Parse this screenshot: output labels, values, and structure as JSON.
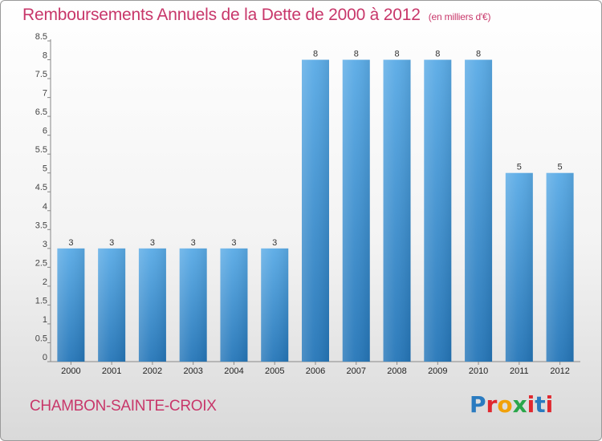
{
  "header": {
    "title": "Remboursements Annuels de la Dette de 2000 à 2012",
    "subtitle": "(en milliers d'€)"
  },
  "footer": {
    "commune": "CHAMBON-SAINTE-CROIX",
    "logo_letters": [
      "P",
      "r",
      "o",
      "x",
      "i",
      "t",
      "i"
    ]
  },
  "colors": {
    "title": "#c8376a",
    "bar_top": "#5aabe6",
    "bar_bottom": "#2576b8"
  },
  "chart_data": {
    "type": "bar",
    "categories": [
      "2000",
      "2001",
      "2002",
      "2003",
      "2004",
      "2005",
      "2006",
      "2007",
      "2008",
      "2009",
      "2010",
      "2011",
      "2012"
    ],
    "values": [
      3,
      3,
      3,
      3,
      3,
      3,
      8,
      8,
      8,
      8,
      8,
      5,
      5
    ],
    "data_labels": [
      "3",
      "3",
      "3",
      "3",
      "3",
      "3",
      "8",
      "8",
      "8",
      "8",
      "8",
      "5",
      "5"
    ],
    "ylim": [
      0,
      8.5
    ],
    "yticks": [
      0,
      0.5,
      1,
      1.5,
      2,
      2.5,
      3,
      3.5,
      4,
      4.5,
      5,
      5.5,
      6,
      6.5,
      7,
      7.5,
      8,
      8.5
    ],
    "ytick_labels": [
      "0",
      "0.5",
      "1",
      "1.5",
      "2",
      "2.5",
      "3",
      "3.5",
      "4",
      "4.5",
      "5",
      "5.5",
      "6",
      "6.5",
      "7",
      "7.5",
      "8",
      "8.5"
    ],
    "xlabel": "",
    "ylabel": "",
    "grid": false,
    "legend": "none"
  }
}
